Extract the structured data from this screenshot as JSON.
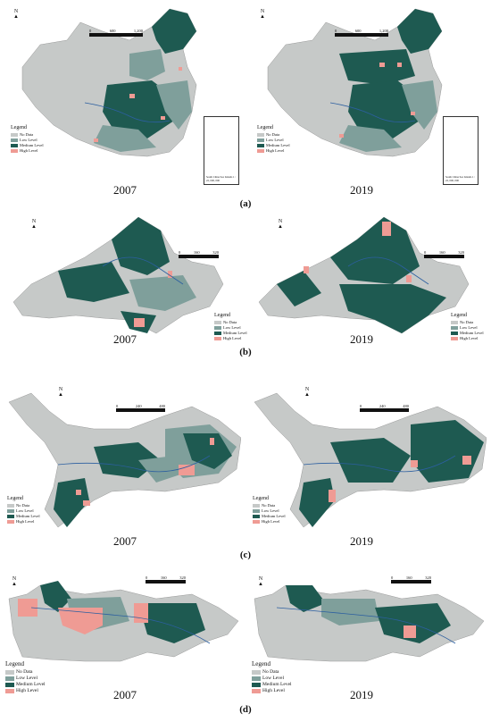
{
  "colors": {
    "no_data": "#c6c9c8",
    "low": "#7f9f9b",
    "medium": "#1e5a51",
    "high": "#ef9b94",
    "river": "#2c5fa0"
  },
  "legend": {
    "title": "Legend",
    "items": [
      "No Data",
      "Low Level",
      "Medium Level",
      "High Level"
    ]
  },
  "panels": [
    {
      "label": "(a)",
      "years": [
        "2007",
        "2019"
      ],
      "scale": [
        "0",
        "600",
        "1,200"
      ],
      "scale_unit": "km",
      "inset_caption": "South China Sea Islands 1 : 22, 000, 000"
    },
    {
      "label": "(b)",
      "years": [
        "2007",
        "2019"
      ],
      "scale": [
        "0",
        "160",
        "320"
      ],
      "scale_unit": "km"
    },
    {
      "label": "(c)",
      "years": [
        "2007",
        "2019"
      ],
      "scale": [
        "0",
        "240",
        "480"
      ],
      "scale_unit": "km"
    },
    {
      "label": "(d)",
      "years": [
        "2007",
        "2019"
      ],
      "scale": [
        "0",
        "160",
        "320"
      ],
      "scale_unit": "km"
    }
  ],
  "north_label": "N"
}
